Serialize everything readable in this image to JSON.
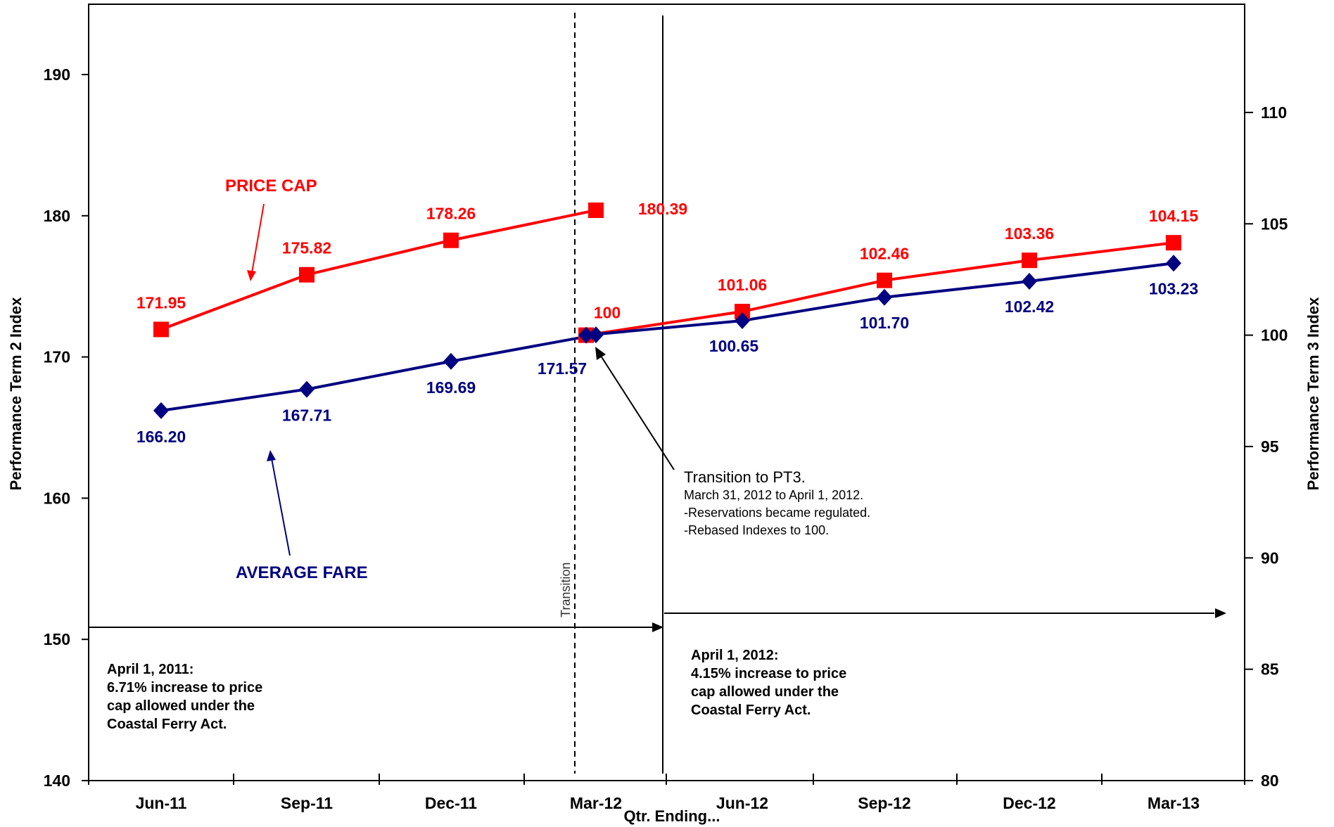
{
  "chart_data": {
    "type": "line",
    "categories": [
      "Jun-11",
      "Sep-11",
      "Dec-11",
      "Mar-12",
      "Jun-12",
      "Sep-12",
      "Dec-12",
      "Mar-13"
    ],
    "xlabel": "Qtr. Ending...",
    "ylabel_left": "Performance Term 2 Index",
    "ylabel_right": "Performance Term 3 Index",
    "ylim_left": [
      140,
      195
    ],
    "ylim_right": [
      80,
      115
    ],
    "yticks_left": [
      "140",
      "150",
      "160",
      "170",
      "180",
      "190"
    ],
    "yticks_right": [
      "80",
      "85",
      "90",
      "95",
      "100",
      "105",
      "110"
    ],
    "grid": false,
    "series": [
      {
        "name": "PRICE CAP",
        "axis": "left",
        "color": "#ff0000",
        "marker": "square",
        "points": [
          [
            "Jun-11",
            171.95
          ],
          [
            "Sep-11",
            175.82
          ],
          [
            "Dec-11",
            178.26
          ],
          [
            "Mar-12",
            180.39
          ]
        ],
        "labels": [
          "171.95",
          "175.82",
          "178.26",
          "180.39"
        ]
      },
      {
        "name": "PRICE CAP",
        "axis": "right",
        "color": "#ff0000",
        "marker": "square",
        "points": [
          [
            "Mar-12",
            100
          ],
          [
            "Jun-12",
            101.06
          ],
          [
            "Sep-12",
            102.46
          ],
          [
            "Dec-12",
            103.36
          ],
          [
            "Mar-13",
            104.15
          ]
        ],
        "labels": [
          "100",
          "101.06",
          "102.46",
          "103.36",
          "104.15"
        ]
      },
      {
        "name": "AVERAGE FARE",
        "axis": "left",
        "color": "#000080",
        "marker": "diamond",
        "points": [
          [
            "Jun-11",
            166.2
          ],
          [
            "Sep-11",
            167.71
          ],
          [
            "Dec-11",
            169.69
          ],
          [
            "Mar-12",
            171.57
          ]
        ],
        "labels": [
          "166.20",
          "167.71",
          "169.69",
          "171.57"
        ]
      },
      {
        "name": "AVERAGE FARE",
        "axis": "right",
        "color": "#000080",
        "marker": "diamond",
        "points": [
          [
            "Mar-12",
            100
          ],
          [
            "Jun-12",
            100.65
          ],
          [
            "Sep-12",
            101.7
          ],
          [
            "Dec-12",
            102.42
          ],
          [
            "Mar-13",
            103.23
          ]
        ],
        "labels": [
          "",
          "100.65",
          "101.70",
          "102.42",
          "103.23"
        ]
      }
    ],
    "series_labels": {
      "price_cap": "PRICE CAP",
      "average_fare": "AVERAGE FARE"
    },
    "annotations": {
      "transition_line": "Transition",
      "transition_title": "Transition to PT3.",
      "transition_lines": [
        "March 31, 2012 to April 1, 2012.",
        "-Reservations became regulated.",
        "-Rebased Indexes to 100."
      ],
      "note_2011": [
        "April 1, 2011:",
        "6.71% increase to price",
        "cap allowed under the",
        "Coastal Ferry Act."
      ],
      "note_2012": [
        "April 1, 2012:",
        "4.15% increase to price",
        "cap allowed under the",
        "Coastal Ferry Act."
      ]
    },
    "colors": {
      "price_cap": "#ff0000",
      "average_fare": "#000080",
      "axes": "#000000"
    }
  }
}
